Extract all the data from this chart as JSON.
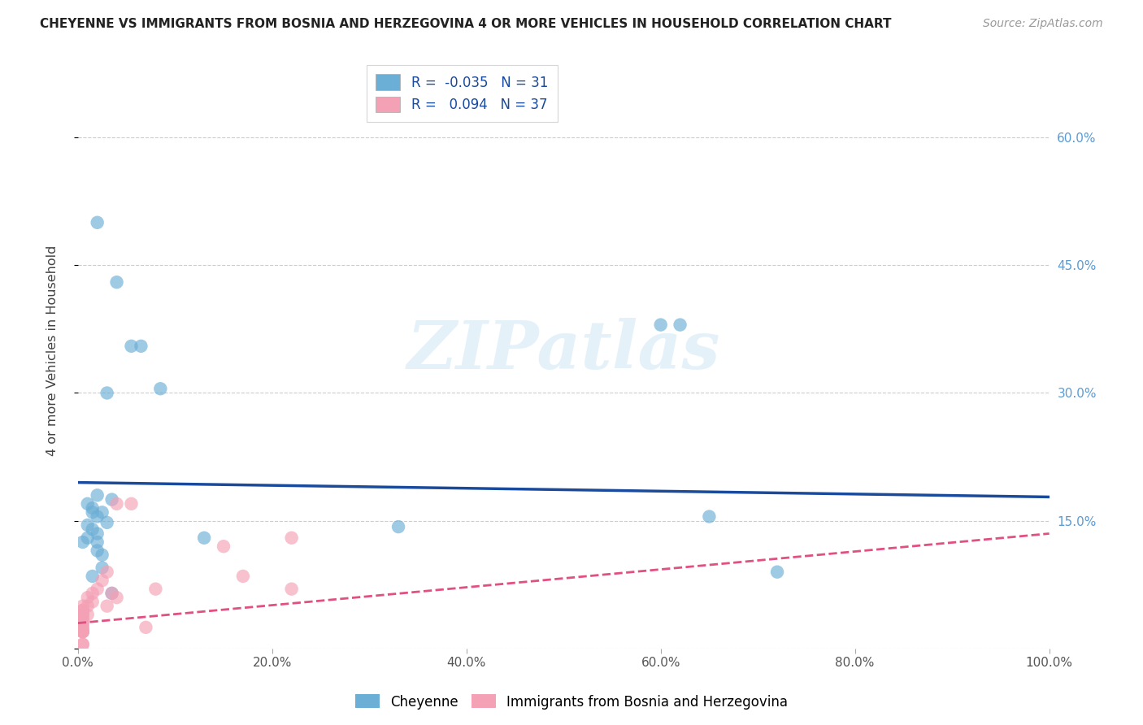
{
  "title": "CHEYENNE VS IMMIGRANTS FROM BOSNIA AND HERZEGOVINA 4 OR MORE VEHICLES IN HOUSEHOLD CORRELATION CHART",
  "source": "Source: ZipAtlas.com",
  "ylabel": "4 or more Vehicles in Household",
  "xlabel": "",
  "legend_label1": "Cheyenne",
  "legend_label2": "Immigrants from Bosnia and Herzegovina",
  "R1": -0.035,
  "N1": 31,
  "R2": 0.094,
  "N2": 37,
  "color1": "#6baed6",
  "color2": "#f4a0b5",
  "trendline1_color": "#1a4a9b",
  "trendline2_color": "#e05080",
  "xlim": [
    0.0,
    1.0
  ],
  "ylim": [
    0.0,
    0.7
  ],
  "xticks": [
    0.0,
    0.2,
    0.4,
    0.6,
    0.8,
    1.0
  ],
  "xticklabels": [
    "0.0%",
    "20.0%",
    "40.0%",
    "60.0%",
    "80.0%",
    "100.0%"
  ],
  "yticks": [
    0.0,
    0.15,
    0.3,
    0.45,
    0.6
  ],
  "yticklabels_right": [
    "",
    "15.0%",
    "30.0%",
    "45.0%",
    "60.0%"
  ],
  "cheyenne_x": [
    0.02,
    0.04,
    0.055,
    0.065,
    0.03,
    0.085,
    0.02,
    0.035,
    0.01,
    0.015,
    0.025,
    0.02,
    0.03,
    0.01,
    0.015,
    0.02,
    0.01,
    0.005,
    0.33,
    0.65,
    0.02,
    0.025,
    0.035,
    0.13,
    0.015,
    0.02,
    0.025,
    0.62,
    0.72,
    0.6,
    0.015
  ],
  "cheyenne_y": [
    0.5,
    0.43,
    0.355,
    0.355,
    0.3,
    0.305,
    0.18,
    0.175,
    0.17,
    0.165,
    0.16,
    0.155,
    0.148,
    0.145,
    0.14,
    0.135,
    0.13,
    0.125,
    0.143,
    0.155,
    0.115,
    0.095,
    0.065,
    0.13,
    0.16,
    0.125,
    0.11,
    0.38,
    0.09,
    0.38,
    0.085
  ],
  "bosnia_x": [
    0.005,
    0.005,
    0.005,
    0.005,
    0.005,
    0.005,
    0.005,
    0.005,
    0.005,
    0.005,
    0.005,
    0.005,
    0.005,
    0.005,
    0.005,
    0.005,
    0.005,
    0.005,
    0.01,
    0.01,
    0.01,
    0.015,
    0.015,
    0.02,
    0.025,
    0.03,
    0.03,
    0.035,
    0.04,
    0.04,
    0.055,
    0.07,
    0.08,
    0.15,
    0.17,
    0.22,
    0.22
  ],
  "bosnia_y": [
    0.02,
    0.02,
    0.02,
    0.02,
    0.02,
    0.025,
    0.025,
    0.03,
    0.03,
    0.035,
    0.035,
    0.04,
    0.04,
    0.045,
    0.045,
    0.05,
    0.005,
    0.005,
    0.05,
    0.04,
    0.06,
    0.065,
    0.055,
    0.07,
    0.08,
    0.09,
    0.05,
    0.065,
    0.17,
    0.06,
    0.17,
    0.025,
    0.07,
    0.12,
    0.085,
    0.07,
    0.13
  ],
  "trend1_x0": 0.0,
  "trend1_y0": 0.195,
  "trend1_x1": 1.0,
  "trend1_y1": 0.178,
  "trend2_x0": 0.0,
  "trend2_y0": 0.03,
  "trend2_x1": 1.0,
  "trend2_y1": 0.135,
  "watermark_text": "ZIPatlas",
  "background_color": "#ffffff",
  "grid_color": "#cccccc"
}
